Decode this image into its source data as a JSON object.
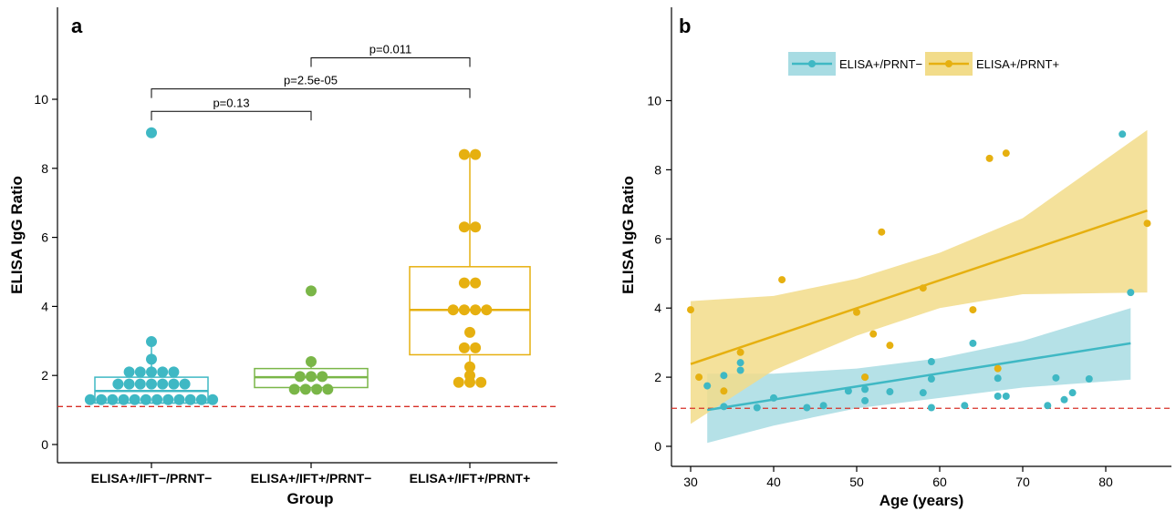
{
  "chart_data": [
    {
      "panel_label": "a",
      "type": "box",
      "xlabel": "Group",
      "ylabel": "ELISA IgG Ratio",
      "ylim": [
        -0.4,
        12
      ],
      "yticks": [
        0,
        2,
        4,
        6,
        8,
        10
      ],
      "reference_line": 1.1,
      "groups": [
        {
          "name": "ELISA+/IFT−/PRNT−",
          "color": "#3fb8c4",
          "q1": 1.2,
          "median": 1.55,
          "q3": 1.95,
          "whisker_low": 1.2,
          "whisker_high": 2.95,
          "points": [
            9.03,
            2.98,
            2.47,
            2.1,
            2.1,
            2.1,
            2.1,
            2.1,
            1.75,
            1.75,
            1.75,
            1.75,
            1.75,
            1.75,
            1.75,
            1.3,
            1.3,
            1.3,
            1.3,
            1.3,
            1.3,
            1.3,
            1.3,
            1.3,
            1.3,
            1.3,
            1.3
          ]
        },
        {
          "name": "ELISA+/IFT+/PRNT−",
          "color": "#7ab648",
          "q1": 1.65,
          "median": 1.95,
          "q3": 2.2,
          "whisker_low": 1.65,
          "whisker_high": 2.4,
          "points": [
            4.45,
            2.4,
            1.97,
            1.97,
            1.97,
            1.6,
            1.6,
            1.6,
            1.6
          ]
        },
        {
          "name": "ELISA+/IFT+/PRNT+",
          "color": "#e6b010",
          "q1": 2.6,
          "median": 3.9,
          "q3": 5.15,
          "whisker_low": 1.8,
          "whisker_high": 8.4,
          "points": [
            8.4,
            8.4,
            6.3,
            6.3,
            4.68,
            4.68,
            3.9,
            3.9,
            3.9,
            3.9,
            3.25,
            2.8,
            2.8,
            2.25,
            2.0,
            1.8,
            1.8,
            1.8
          ]
        }
      ],
      "comparisons": [
        {
          "from": 0,
          "to": 1,
          "label": "p=0.13",
          "y": 9.65
        },
        {
          "from": 0,
          "to": 2,
          "label": "p=2.5e-05",
          "y": 10.3
        },
        {
          "from": 1,
          "to": 2,
          "label": "p=0.011",
          "y": 11.2
        }
      ]
    },
    {
      "panel_label": "b",
      "type": "scatter",
      "xlabel": "Age (years)",
      "ylabel": "ELISA IgG Ratio",
      "xlim": [
        28,
        87
      ],
      "ylim": [
        -0.4,
        12
      ],
      "xticks": [
        30,
        40,
        50,
        60,
        70,
        80
      ],
      "yticks": [
        0,
        2,
        4,
        6,
        8,
        10
      ],
      "reference_line": 1.1,
      "legend_position": "top",
      "series": [
        {
          "name": "ELISA+/PRNT−",
          "color": "#3fb8c4",
          "fill": "#a8dce3",
          "fit": {
            "x": [
              32,
              83
            ],
            "y": [
              1.05,
              2.98
            ]
          },
          "band": {
            "x": [
              32,
              40,
              50,
              60,
              70,
              83
            ],
            "lower": [
              0.1,
              0.6,
              1.1,
              1.4,
              1.7,
              1.93
            ],
            "upper": [
              2.1,
              2.1,
              2.25,
              2.55,
              3.05,
              4.0
            ]
          },
          "x": [
            32,
            34,
            34,
            36,
            36,
            38,
            40,
            44,
            46,
            49,
            51,
            51,
            54,
            58,
            59,
            59,
            59,
            63,
            64,
            67,
            67,
            68,
            73,
            74,
            75,
            76,
            78,
            82,
            83,
            51
          ],
          "y": [
            1.75,
            2.05,
            1.15,
            2.42,
            2.2,
            1.12,
            1.4,
            1.12,
            1.18,
            1.6,
            1.65,
            1.32,
            1.58,
            1.55,
            2.45,
            1.95,
            1.12,
            1.18,
            2.98,
            1.97,
            1.45,
            1.45,
            1.18,
            1.98,
            1.35,
            1.55,
            1.95,
            9.03,
            4.45,
            2.0
          ]
        },
        {
          "name": "ELISA+/PRNT+",
          "color": "#e6b010",
          "fill": "#f2dc8a",
          "fit": {
            "x": [
              30,
              85
            ],
            "y": [
              2.38,
              6.82
            ]
          },
          "band": {
            "x": [
              30,
              40,
              50,
              60,
              70,
              85
            ],
            "lower": [
              0.65,
              2.2,
              3.2,
              4.0,
              4.4,
              4.45
            ],
            "upper": [
              4.2,
              4.35,
              4.85,
              5.6,
              6.6,
              9.15
            ]
          },
          "x": [
            30,
            31,
            34,
            36,
            41,
            50,
            51,
            52,
            53,
            54,
            58,
            64,
            66,
            67,
            68,
            85
          ],
          "y": [
            3.95,
            2.0,
            1.6,
            2.72,
            4.82,
            3.88,
            2.0,
            3.25,
            6.2,
            2.92,
            4.58,
            3.95,
            8.33,
            2.25,
            8.48,
            6.45
          ]
        }
      ]
    }
  ]
}
